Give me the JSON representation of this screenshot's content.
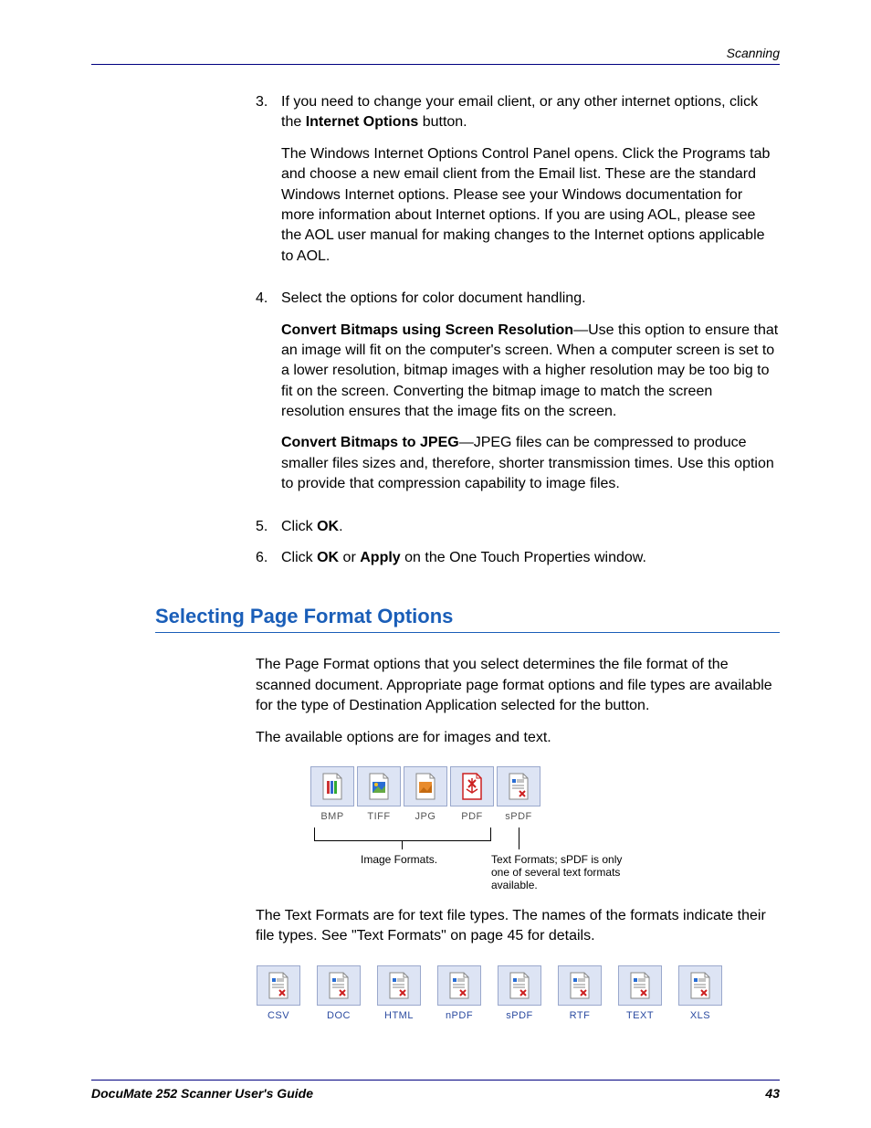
{
  "header": {
    "section": "Scanning"
  },
  "steps": {
    "s3": {
      "num": "3.",
      "p1a": "If you need to change your email client, or any other internet options, click the ",
      "p1b": "Internet Options",
      "p1c": " button.",
      "p2": "The Windows Internet Options Control Panel opens. Click the Programs tab and choose a new email client from the Email list. These are the standard Windows Internet options. Please see your Windows documentation for more information about Internet options. If you are using AOL, please see the AOL user manual for making changes to the Internet options applicable to AOL."
    },
    "s4": {
      "num": "4.",
      "p1": "Select the options for color document handling.",
      "p2a": "Convert Bitmaps using Screen Resolution",
      "p2b": "—Use this option to ensure that an image will fit on the computer's screen. When a computer screen is set to a lower resolution, bitmap images with a higher resolution may be too big to fit on the screen. Converting the bitmap image to match the screen resolution ensures that the image fits on the screen.",
      "p3a": "Convert Bitmaps to JPEG",
      "p3b": "—JPEG files can be compressed to produce smaller files sizes and, therefore, shorter transmission times. Use this option to provide that compression capability to image files."
    },
    "s5": {
      "num": "5.",
      "p1a": "Click ",
      "p1b": "OK",
      "p1c": "."
    },
    "s6": {
      "num": "6.",
      "p1a": "Click ",
      "p1b": "OK",
      "p1c": " or ",
      "p1d": "Apply",
      "p1e": " on the One Touch Properties window."
    }
  },
  "heading": "Selecting Page Format Options",
  "body": {
    "p1": "The Page Format options that you select determines the file format of the scanned document. Appropriate page format options and file types are available for the type of Destination Application selected for the button.",
    "p2": "The available options are for images and text.",
    "p3": "The Text Formats are for text file types. The names of the formats indicate their file types. See \"Text Formats\" on page 45 for details."
  },
  "image_formats": {
    "items": [
      {
        "label": "BMP"
      },
      {
        "label": "TIFF"
      },
      {
        "label": "JPG"
      },
      {
        "label": "PDF"
      },
      {
        "label": "sPDF"
      }
    ],
    "caption_left": "Image Formats.",
    "caption_right": "Text Formats; sPDF is only one of several text formats available."
  },
  "text_formats": {
    "items": [
      {
        "label": "CSV"
      },
      {
        "label": "DOC"
      },
      {
        "label": "HTML"
      },
      {
        "label": "nPDF"
      },
      {
        "label": "sPDF"
      },
      {
        "label": "RTF"
      },
      {
        "label": "TEXT"
      },
      {
        "label": "XLS"
      }
    ]
  },
  "footer": {
    "title": "DocuMate 252 Scanner User's Guide",
    "page": "43"
  },
  "colors": {
    "heading_color": "#1a5eb8",
    "rule_color": "#000080",
    "icon_bg": "#dde4f4",
    "icon_border": "#9aa8cc"
  },
  "icons": {
    "bmp": {
      "stroke": "#888",
      "accent": "#cc3333",
      "accent2": "#3366cc",
      "accent3": "#33aa33"
    },
    "tiff": {
      "stroke": "#888",
      "fill": "#2a6ed4",
      "mountain": "#66aa44",
      "sun": "#f4c020"
    },
    "jpg": {
      "stroke": "#888",
      "fill": "#e88b2c"
    },
    "pdf": {
      "stroke": "#888",
      "fill": "#cc2020"
    },
    "text": {
      "stroke": "#888",
      "accent": "#2a6ed4",
      "mark": "#cc2020"
    }
  }
}
